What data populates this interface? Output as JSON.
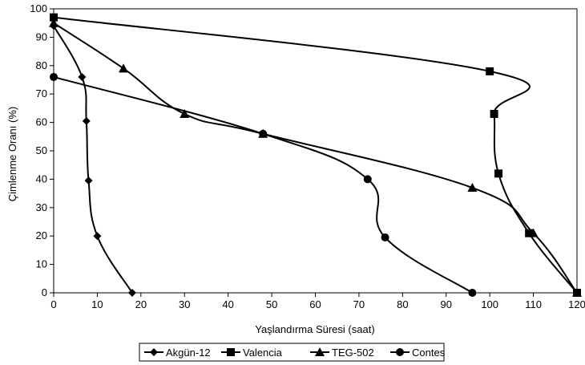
{
  "chart_data": {
    "type": "line",
    "title": "",
    "xlabel": "Yaşlandırma Süresi (saat)",
    "ylabel": "Çimlenme Oranı (%)",
    "xlim": [
      0,
      120
    ],
    "ylim": [
      0,
      100
    ],
    "xticks": [
      "0",
      "10",
      "20",
      "30",
      "40",
      "50",
      "60",
      "70",
      "80",
      "90",
      "100",
      "110",
      "120"
    ],
    "yticks": [
      "0",
      "10",
      "20",
      "30",
      "40",
      "50",
      "60",
      "70",
      "80",
      "90",
      "100"
    ],
    "grid": false,
    "legend_position": "bottom",
    "series": [
      {
        "name": "Akgün-12",
        "marker": "diamond",
        "color": "#000000",
        "points": [
          [
            0,
            94
          ],
          [
            6.5,
            76
          ],
          [
            7.5,
            60.5
          ],
          [
            8,
            39.5
          ],
          [
            10,
            20
          ],
          [
            18,
            0
          ]
        ]
      },
      {
        "name": "Valencia",
        "marker": "square",
        "color": "#000000",
        "points": [
          [
            0,
            97
          ],
          [
            100,
            78
          ],
          [
            101,
            63
          ],
          [
            102,
            42
          ],
          [
            109,
            21
          ],
          [
            120,
            0
          ]
        ]
      },
      {
        "name": "TEG-502",
        "marker": "triangle",
        "color": "#000000",
        "points": [
          [
            0,
            95
          ],
          [
            16,
            79
          ],
          [
            30,
            63
          ],
          [
            48,
            56
          ],
          [
            96,
            37
          ],
          [
            110,
            21
          ],
          [
            120,
            0
          ]
        ]
      },
      {
        "name": "Contes",
        "marker": "circle",
        "color": "#000000",
        "points": [
          [
            0,
            76
          ],
          [
            48,
            56
          ],
          [
            72,
            40
          ],
          [
            76,
            19.5
          ],
          [
            96,
            0
          ]
        ]
      }
    ]
  }
}
